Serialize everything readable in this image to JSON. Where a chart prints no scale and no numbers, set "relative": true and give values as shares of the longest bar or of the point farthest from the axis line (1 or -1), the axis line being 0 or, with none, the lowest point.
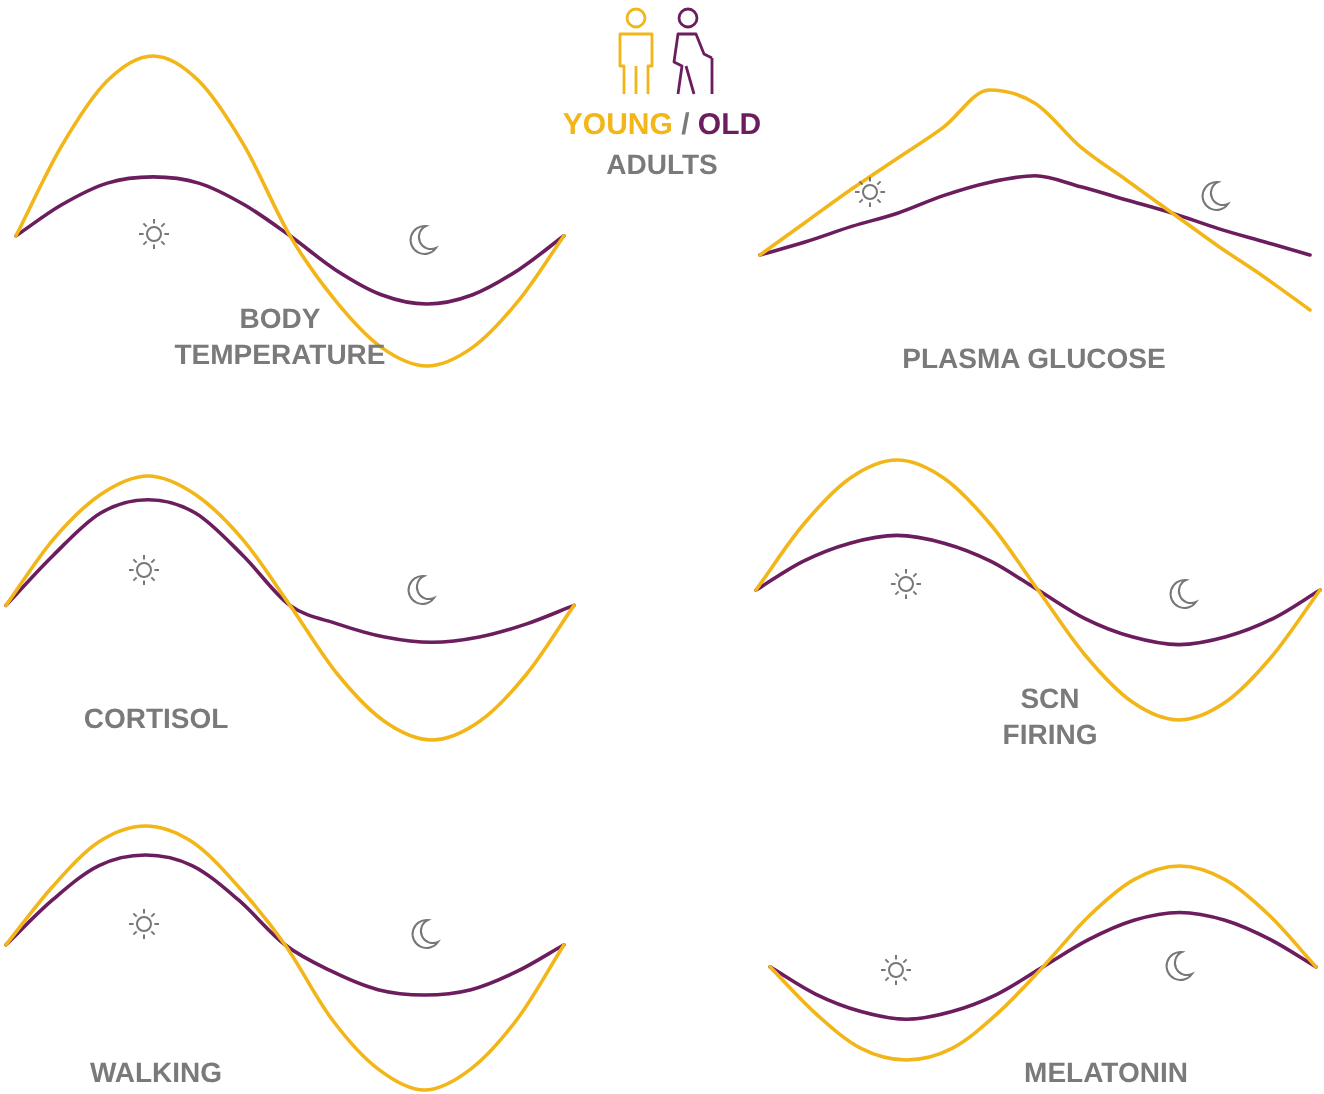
{
  "chart_data": [
    {
      "type": "other",
      "annotations": [
        "YOUNG",
        "/",
        "OLD",
        "ADULTS"
      ]
    },
    {
      "type": "line",
      "title": "BODY TEMPERATURE",
      "relative": true,
      "marker": "none",
      "categories": [
        null,
        null,
        null,
        null,
        null,
        null,
        null,
        null,
        null,
        null,
        null,
        null,
        null
      ],
      "series": [
        {
          "color": "#f2b619",
          "values": [
            0.42,
            0.71,
            0.92,
            1,
            0.92,
            0.71,
            0.42,
            0.21,
            0.06,
            0,
            0.06,
            0.21,
            0.42
          ]
        },
        {
          "color": "#6b1d5e",
          "values": [
            0.42,
            0.52,
            0.59,
            0.61,
            0.59,
            0.52,
            0.42,
            0.31,
            0.23,
            0.2,
            0.23,
            0.31,
            0.42
          ]
        }
      ]
    },
    {
      "type": "line",
      "title": "PLASMA GLUCOSE",
      "relative": true,
      "marker": "none",
      "categories": [
        null,
        null,
        null,
        null,
        null,
        null,
        null,
        null,
        null,
        null,
        null,
        null,
        null
      ],
      "series": [
        {
          "color": "#f2b619",
          "values": [
            0.25,
            0.4,
            0.55,
            0.69,
            0.83,
            1,
            0.94,
            0.74,
            0.59,
            0.44,
            0.29,
            0.15,
            0
          ]
        },
        {
          "color": "#6b1d5e",
          "values": [
            0.25,
            0.31,
            0.38,
            0.44,
            0.52,
            0.58,
            0.61,
            0.56,
            0.5,
            0.44,
            0.37,
            0.31,
            0.25
          ]
        }
      ]
    },
    {
      "type": "line",
      "title": "CORTISOL",
      "relative": true,
      "marker": "none",
      "categories": [
        null,
        null,
        null,
        null,
        null,
        null,
        null,
        null,
        null,
        null,
        null,
        null,
        null
      ],
      "series": [
        {
          "color": "#f2b619",
          "values": [
            0.51,
            0.76,
            0.93,
            1,
            0.93,
            0.76,
            0.51,
            0.25,
            0.07,
            0,
            0.07,
            0.25,
            0.51
          ]
        },
        {
          "color": "#6b1d5e",
          "values": [
            0.51,
            0.7,
            0.86,
            0.91,
            0.86,
            0.7,
            0.51,
            0.44,
            0.39,
            0.37,
            0.39,
            0.44,
            0.51
          ]
        }
      ]
    },
    {
      "type": "line",
      "title": "SCN FIRING",
      "relative": true,
      "marker": "none",
      "categories": [
        null,
        null,
        null,
        null,
        null,
        null,
        null,
        null,
        null,
        null,
        null,
        null,
        null
      ],
      "series": [
        {
          "color": "#f2b619",
          "values": [
            0.5,
            0.75,
            0.93,
            1,
            0.93,
            0.75,
            0.5,
            0.25,
            0.07,
            0,
            0.07,
            0.25,
            0.5
          ]
        },
        {
          "color": "#6b1d5e",
          "values": [
            0.5,
            0.61,
            0.68,
            0.71,
            0.68,
            0.61,
            0.5,
            0.39,
            0.32,
            0.29,
            0.32,
            0.39,
            0.5
          ]
        }
      ]
    },
    {
      "type": "line",
      "title": "WALKING",
      "relative": true,
      "marker": "none",
      "categories": [
        null,
        null,
        null,
        null,
        null,
        null,
        null,
        null,
        null,
        null,
        null,
        null,
        null
      ],
      "series": [
        {
          "color": "#f2b619",
          "values": [
            0.55,
            0.77,
            0.94,
            1,
            0.94,
            0.77,
            0.55,
            0.27,
            0.08,
            0,
            0.08,
            0.27,
            0.55
          ]
        },
        {
          "color": "#6b1d5e",
          "values": [
            0.55,
            0.72,
            0.85,
            0.89,
            0.85,
            0.72,
            0.55,
            0.45,
            0.38,
            0.36,
            0.38,
            0.45,
            0.55
          ]
        }
      ]
    },
    {
      "type": "line",
      "title": "MELATONIN",
      "relative": true,
      "marker": "none",
      "categories": [
        null,
        null,
        null,
        null,
        null,
        null,
        null,
        null,
        null,
        null,
        null,
        null,
        null
      ],
      "series": [
        {
          "color": "#f2b619",
          "values": [
            0.48,
            0.24,
            0.06,
            0,
            0.06,
            0.24,
            0.48,
            0.74,
            0.93,
            1,
            0.93,
            0.74,
            0.48
          ]
        },
        {
          "color": "#6b1d5e",
          "values": [
            0.48,
            0.34,
            0.25,
            0.21,
            0.25,
            0.34,
            0.48,
            0.62,
            0.72,
            0.76,
            0.72,
            0.62,
            0.48
          ]
        }
      ]
    }
  ]
}
